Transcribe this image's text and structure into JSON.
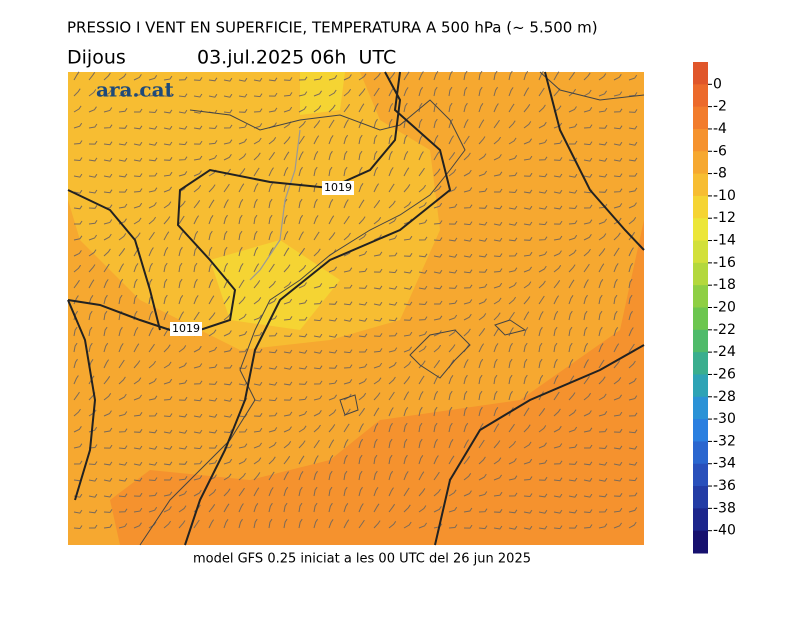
{
  "header": {
    "title": "PRESSIO I VENT EN SUPERFICIE, TEMPERATURA A 500 hPa (~ 5.500 m)",
    "day": "Dijous",
    "datetime": "03.jul.2025 06h  UTC"
  },
  "map": {
    "logo": "ara.cat",
    "isobar_labels": [
      "1019",
      "1019"
    ]
  },
  "footer": "model GFS 0.25 iniciat a les 00 UTC del 26 jun 2025",
  "colorbar": {
    "range": [
      -42,
      2
    ],
    "ticks": [
      0,
      -2,
      -4,
      -6,
      -8,
      -10,
      -12,
      -14,
      -16,
      -18,
      -20,
      -22,
      -24,
      -26,
      -28,
      -30,
      -32,
      -34,
      -36,
      -38,
      -40
    ],
    "colors": [
      "#e0562a",
      "#ec6a2b",
      "#f27c2c",
      "#f5922e",
      "#f6a830",
      "#f7bd32",
      "#f5d433",
      "#ece638",
      "#d2e03a",
      "#b3d83d",
      "#8ecf44",
      "#6cc64f",
      "#4fbb6a",
      "#3aae8e",
      "#2ea3b5",
      "#2b92d6",
      "#2a7fe0",
      "#2a66cf",
      "#2950bb",
      "#233ca5",
      "#1c268c",
      "#16106e"
    ]
  }
}
